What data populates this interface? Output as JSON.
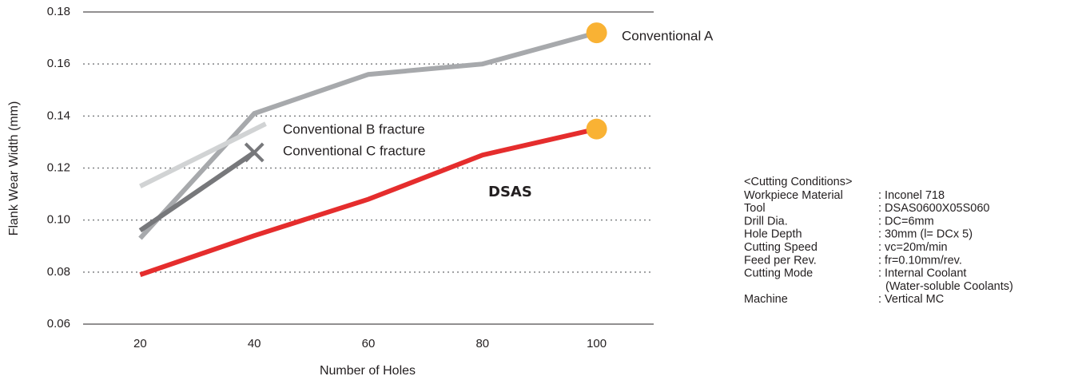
{
  "chart_data": {
    "type": "line",
    "xlabel": "Number of Holes",
    "ylabel": "Flank Wear Width (mm)",
    "xlim": [
      10,
      110
    ],
    "xticks": [
      20,
      40,
      60,
      80,
      100
    ],
    "ylim": [
      0.06,
      0.18
    ],
    "yticks": [
      0.06,
      0.08,
      {
        "value": 0.1,
        "label": "0.10"
      },
      0.12,
      0.14,
      0.16,
      0.18
    ],
    "grid": true,
    "series": [
      {
        "name": "Conventional A",
        "color": "#a7a9ac",
        "x": [
          20,
          40,
          60,
          80,
          100
        ],
        "values": [
          0.093,
          0.141,
          0.156,
          0.16,
          0.172
        ],
        "end_marker": "circle",
        "marker_color": "#f9b234"
      },
      {
        "name": "Conventional B fracture",
        "color": "#d1d3d4",
        "x": [
          20,
          42
        ],
        "values": [
          0.113,
          0.137
        ]
      },
      {
        "name": "Conventional C fracture",
        "color": "#77787b",
        "x": [
          20,
          40
        ],
        "values": [
          0.096,
          0.126
        ],
        "end_marker": "x",
        "marker_color": "#77787b"
      },
      {
        "name": "DSAS",
        "color": "#e52d2d",
        "x": [
          20,
          40,
          60,
          80,
          100
        ],
        "values": [
          0.079,
          0.094,
          0.108,
          0.125,
          0.135
        ],
        "end_marker": "circle",
        "marker_color": "#f9b234"
      }
    ]
  },
  "conditions": {
    "title": "<Cutting Conditions>",
    "rows": [
      {
        "label": "Workpiece Material",
        "value": ": Inconel 718"
      },
      {
        "label": "Tool",
        "value": ": DSAS0600X05S060"
      },
      {
        "label": "Drill Dia.",
        "value": ": DC=6mm"
      },
      {
        "label": "Hole Depth",
        "value": ": 30mm (l= DCx 5)"
      },
      {
        "label": "Cutting Speed",
        "value": ": vc=20m/min"
      },
      {
        "label": "Feed per Rev.",
        "value": ": fr=0.10mm/rev."
      },
      {
        "label": "Cutting Mode",
        "value": ": Internal Coolant"
      },
      {
        "value": "(Water-soluble Coolants)"
      },
      {
        "label": "Machine",
        "value": ": Vertical MC"
      }
    ]
  }
}
